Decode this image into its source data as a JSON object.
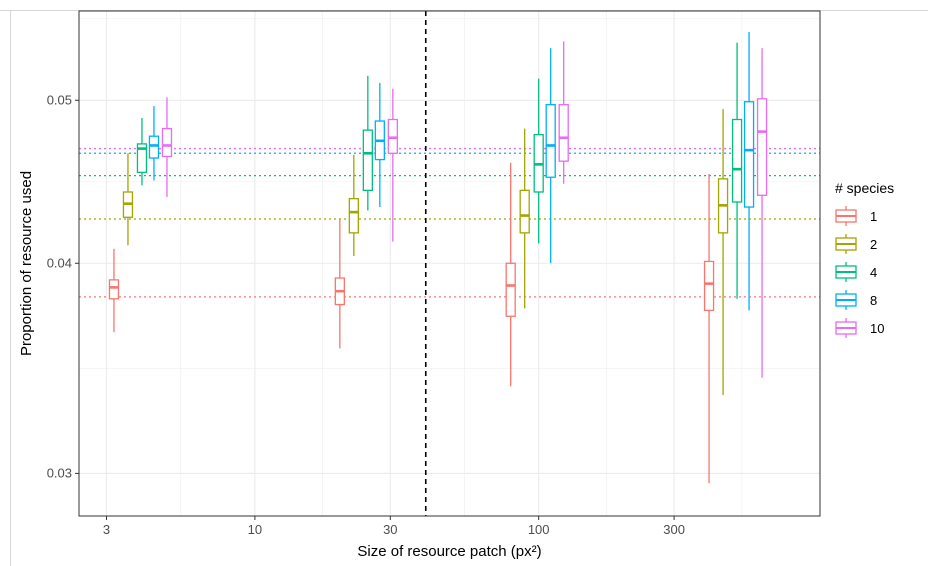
{
  "chart_data": {
    "type": "boxplot",
    "xlabel": "Size of resource patch (px²)",
    "ylabel": "Proportion of resource used",
    "x_scale": "log10",
    "y_scale": "log10",
    "xlim": [
      2.4,
      980
    ],
    "ylim": [
      0.0283,
      0.0565
    ],
    "x_ticks": [
      3,
      10,
      30,
      100,
      300
    ],
    "x_tick_labels": [
      "3",
      "10",
      "30",
      "100",
      "300"
    ],
    "y_ticks": [
      0.03,
      0.04,
      0.05
    ],
    "y_tick_labels": [
      "0.03",
      "0.04",
      "0.05"
    ],
    "grid": true,
    "vertical_reference_line": 40,
    "legend": {
      "title": "# species",
      "position": "right"
    },
    "group_positions": [
      4,
      25,
      100,
      500
    ],
    "series": [
      {
        "name": "1",
        "color": "#F8766D",
        "hline": 0.0382,
        "boxes": [
          {
            "whisker_low": 0.0364,
            "q1": 0.0381,
            "median": 0.0387,
            "q3": 0.0391,
            "whisker_high": 0.0408
          },
          {
            "whisker_low": 0.0356,
            "q1": 0.0378,
            "median": 0.0385,
            "q3": 0.0392,
            "whisker_high": 0.0425
          },
          {
            "whisker_low": 0.0338,
            "q1": 0.0372,
            "median": 0.0388,
            "q3": 0.04,
            "whisker_high": 0.0459
          },
          {
            "whisker_low": 0.0296,
            "q1": 0.0375,
            "median": 0.0389,
            "q3": 0.0401,
            "whisker_high": 0.0452
          }
        ]
      },
      {
        "name": "2",
        "color": "#A3A500",
        "hline": 0.0425,
        "boxes": [
          {
            "whisker_low": 0.041,
            "q1": 0.0426,
            "median": 0.0434,
            "q3": 0.0441,
            "whisker_high": 0.0465
          },
          {
            "whisker_low": 0.0404,
            "q1": 0.0417,
            "median": 0.0429,
            "q3": 0.0437,
            "whisker_high": 0.0464
          },
          {
            "whisker_low": 0.0376,
            "q1": 0.0417,
            "median": 0.0427,
            "q3": 0.0442,
            "whisker_high": 0.0481
          },
          {
            "whisker_low": 0.0334,
            "q1": 0.0417,
            "median": 0.0433,
            "q3": 0.0449,
            "whisker_high": 0.0494
          }
        ]
      },
      {
        "name": "4",
        "color": "#00BF7D",
        "hline": 0.0451,
        "boxes": [
          {
            "whisker_low": 0.0445,
            "q1": 0.0453,
            "median": 0.0468,
            "q3": 0.0471,
            "whisker_high": 0.0488
          },
          {
            "whisker_low": 0.043,
            "q1": 0.0442,
            "median": 0.0465,
            "q3": 0.048,
            "whisker_high": 0.0517
          },
          {
            "whisker_low": 0.0411,
            "q1": 0.0441,
            "median": 0.0458,
            "q3": 0.0477,
            "whisker_high": 0.0515
          },
          {
            "whisker_low": 0.0381,
            "q1": 0.0435,
            "median": 0.0455,
            "q3": 0.0487,
            "whisker_high": 0.0541
          }
        ]
      },
      {
        "name": "8",
        "color": "#00B0F6",
        "hline": 0.0465,
        "boxes": [
          {
            "whisker_low": 0.0448,
            "q1": 0.0462,
            "median": 0.047,
            "q3": 0.0476,
            "whisker_high": 0.0496
          },
          {
            "whisker_low": 0.0432,
            "q1": 0.0461,
            "median": 0.0473,
            "q3": 0.0486,
            "whisker_high": 0.0512
          },
          {
            "whisker_low": 0.04,
            "q1": 0.045,
            "median": 0.047,
            "q3": 0.0497,
            "whisker_high": 0.0537
          },
          {
            "whisker_low": 0.0375,
            "q1": 0.0432,
            "median": 0.0467,
            "q3": 0.0499,
            "whisker_high": 0.0549
          }
        ]
      },
      {
        "name": "10",
        "color": "#E76BF3",
        "hline": 0.0468,
        "boxes": [
          {
            "whisker_low": 0.0438,
            "q1": 0.0463,
            "median": 0.047,
            "q3": 0.0481,
            "whisker_high": 0.0502
          },
          {
            "whisker_low": 0.0412,
            "q1": 0.0465,
            "median": 0.0475,
            "q3": 0.0487,
            "whisker_high": 0.0508
          },
          {
            "whisker_low": 0.0446,
            "q1": 0.046,
            "median": 0.0475,
            "q3": 0.0497,
            "whisker_high": 0.0542
          },
          {
            "whisker_low": 0.0342,
            "q1": 0.0439,
            "median": 0.0479,
            "q3": 0.0501,
            "whisker_high": 0.0537
          }
        ]
      }
    ]
  }
}
